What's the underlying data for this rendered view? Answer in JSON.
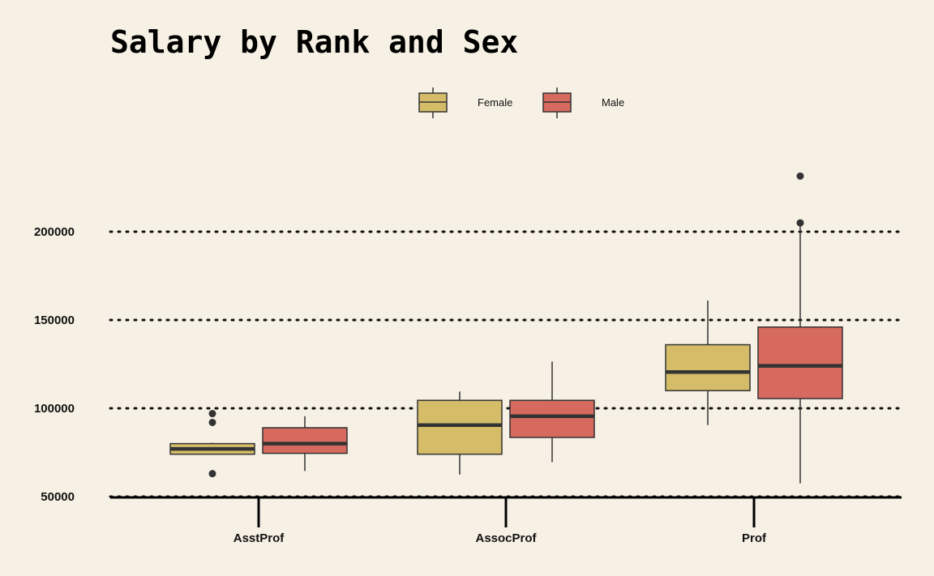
{
  "chart_data": {
    "type": "boxplot",
    "title": "Salary by Rank and Sex",
    "xlabel": "",
    "ylabel": "",
    "categories": [
      "AsstProf",
      "AssocProf",
      "Prof"
    ],
    "yticks": [
      "50000",
      "100000",
      "150000",
      "200000"
    ],
    "ytick_values": [
      50000,
      100000,
      150000,
      200000
    ],
    "ylim": [
      50000,
      232000
    ],
    "grid": "horizontal dotted",
    "legend_position": "top-center",
    "series": [
      {
        "name": "Female",
        "color": "#d4bc68",
        "boxes": [
          {
            "whisker_low": 74000,
            "q1": 74000,
            "median": 77000,
            "q3": 80000,
            "whisker_high": 80500,
            "outliers": [
              63000,
              92000,
              97000
            ]
          },
          {
            "whisker_low": 62500,
            "q1": 74000,
            "median": 90500,
            "q3": 104500,
            "whisker_high": 109500,
            "outliers": []
          },
          {
            "whisker_low": 90500,
            "q1": 110000,
            "median": 120500,
            "q3": 136000,
            "whisker_high": 161000,
            "outliers": []
          }
        ]
      },
      {
        "name": "Male",
        "color": "#d66a5e",
        "boxes": [
          {
            "whisker_low": 64500,
            "q1": 74500,
            "median": 80000,
            "q3": 89000,
            "whisker_high": 95500,
            "outliers": []
          },
          {
            "whisker_low": 69500,
            "q1": 83500,
            "median": 95500,
            "q3": 104500,
            "whisker_high": 126500,
            "outliers": []
          },
          {
            "whisker_low": 57500,
            "q1": 105500,
            "median": 124000,
            "q3": 146000,
            "whisker_high": 204500,
            "outliers": [
              205000,
              231500
            ]
          }
        ]
      }
    ]
  },
  "colors": {
    "background": "#f6f1e4",
    "box_edge": "#333333",
    "grid": "#111111"
  }
}
